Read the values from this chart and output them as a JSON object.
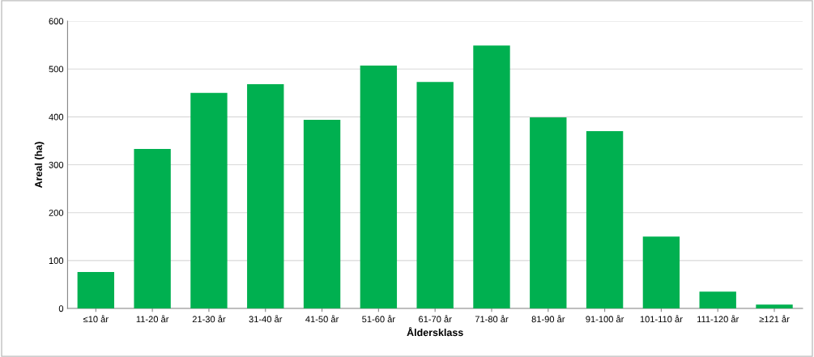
{
  "chart_data": {
    "type": "bar",
    "xlabel": "Åldersklass",
    "ylabel": "Areal (ha)",
    "categories": [
      "≤10 år",
      "11-20 år",
      "21-30 år",
      "31-40 år",
      "41-50 år",
      "51-60 år",
      "61-70 år",
      "71-80 år",
      "81-90 år",
      "91-100 år",
      "101-110 år",
      "111-120 år",
      "≥121 år"
    ],
    "values": [
      76,
      333,
      450,
      468,
      394,
      507,
      473,
      549,
      399,
      370,
      150,
      35,
      8
    ],
    "color": "#00b050",
    "ylim": [
      0,
      600
    ],
    "yticks": [
      0,
      100,
      200,
      300,
      400,
      500,
      600
    ],
    "grid": "y",
    "legend": false
  }
}
